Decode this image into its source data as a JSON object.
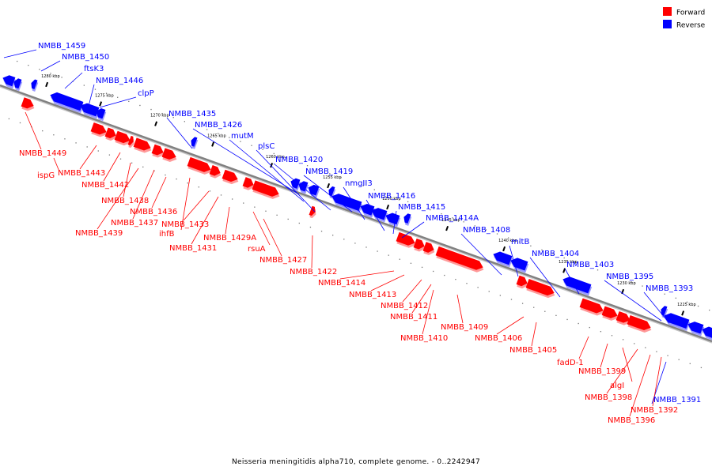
{
  "caption": "Neisseria meningitidis alpha710, complete genome. - 0..2242947",
  "legend": [
    {
      "label": "Forward",
      "color": "#ff0000"
    },
    {
      "label": "Reverse",
      "color": "#0000ff"
    }
  ],
  "colors": {
    "forward": "#ff0000",
    "reverse": "#0000ff",
    "backbone": "#808080"
  },
  "ticks": [
    "1280 kbp",
    "1275 kbp",
    "1270 kbp",
    "1265 kbp",
    "1260 kbp",
    "1255 kbp",
    "1250 kbp",
    "1245 kbp",
    "1240 kbp",
    "1235 kbp",
    "1230 kbp",
    "1225 kbp"
  ],
  "reverse_labels": [
    "NMBB_1459",
    "NMBB_1450",
    "ftsK3",
    "NMBB_1446",
    "clpP",
    "NMBB_1435",
    "NMBB_1426",
    "mutM",
    "plsC",
    "NMBB_1420",
    "NMBB_1419",
    "nmgII3",
    "NMBB_1416",
    "NMBB_1415",
    "NMBB_1414A",
    "NMBB_1408",
    "mltB",
    "NMBB_1404",
    "NMBB_1403",
    "NMBB_1395",
    "NMBB_1393",
    "NMBB_1391"
  ],
  "forward_labels": [
    "NMBB_1449",
    "ispG",
    "NMBB_1443",
    "NMBB_1442",
    "NMBB_1438",
    "NMBB_1437",
    "NMBB_1439",
    "NMBB_1436",
    "ihfB",
    "NMBB_1433",
    "NMBB_1431",
    "NMBB_1429A",
    "rsuA",
    "NMBB_1427",
    "NMBB_1422",
    "NMBB_1414",
    "NMBB_1413",
    "NMBB_1412",
    "NMBB_1411",
    "NMBB_1410",
    "NMBB_1409",
    "NMBB_1406",
    "NMBB_1405",
    "fadD-1",
    "NMBB_1399",
    "algI",
    "NMBB_1398",
    "NMBB_1392",
    "NMBB_1396"
  ]
}
